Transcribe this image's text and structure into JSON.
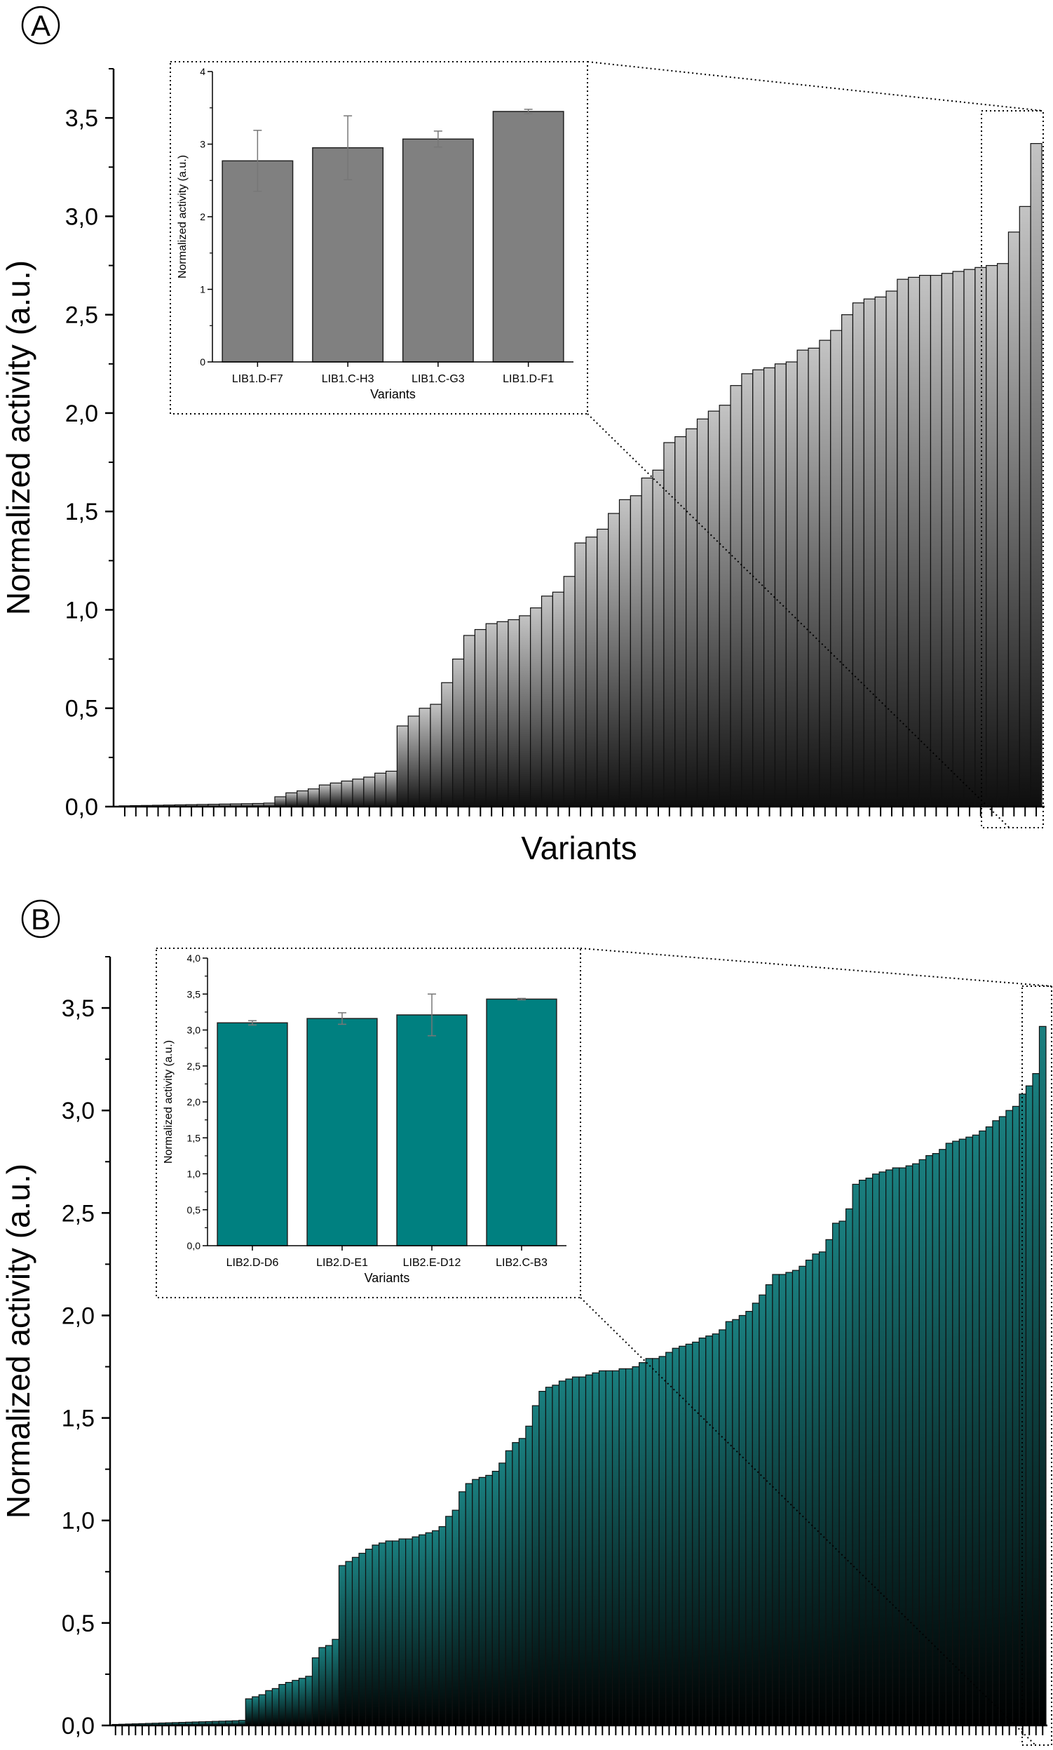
{
  "chart_data": [
    {
      "panel": "A",
      "type": "bar",
      "xlabel": "Variants",
      "ylabel": "Normalized activity (a.u.)",
      "ylim": [
        0,
        3.75
      ],
      "yticks": [
        "0,0",
        "0,5",
        "1,0",
        "1,5",
        "2,0",
        "2,5",
        "3,0",
        "3,5"
      ],
      "colors": {
        "bottom": "#0e0e0e",
        "top": "#c4c4c4"
      },
      "values": [
        0.004,
        0.005,
        0.006,
        0.007,
        0.008,
        0.009,
        0.01,
        0.011,
        0.012,
        0.013,
        0.014,
        0.015,
        0.016,
        0.018,
        0.05,
        0.07,
        0.08,
        0.09,
        0.11,
        0.12,
        0.13,
        0.14,
        0.15,
        0.17,
        0.18,
        0.41,
        0.46,
        0.5,
        0.52,
        0.63,
        0.75,
        0.87,
        0.9,
        0.93,
        0.94,
        0.95,
        0.97,
        1.01,
        1.07,
        1.09,
        1.17,
        1.34,
        1.37,
        1.41,
        1.49,
        1.56,
        1.58,
        1.67,
        1.71,
        1.85,
        1.88,
        1.92,
        1.97,
        2.01,
        2.04,
        2.14,
        2.2,
        2.22,
        2.23,
        2.25,
        2.26,
        2.32,
        2.33,
        2.37,
        2.42,
        2.5,
        2.56,
        2.58,
        2.59,
        2.62,
        2.68,
        2.69,
        2.7,
        2.7,
        2.71,
        2.72,
        2.73,
        2.74,
        2.75,
        2.76,
        2.92,
        3.05,
        3.37
      ],
      "inset": {
        "type": "bar",
        "xlabel": "Variants",
        "ylabel": "Normalized activity (a.u.)",
        "ylim": [
          0,
          4
        ],
        "yticks": [
          "0",
          "1",
          "2",
          "3",
          "4"
        ],
        "color": "#808080",
        "categories": [
          "LIB1.D-F7",
          "LIB1.C-H3",
          "LIB1.C-G3",
          "LIB1.D-F1"
        ],
        "values": [
          2.77,
          2.95,
          3.07,
          3.45
        ],
        "errors": [
          0.42,
          0.44,
          0.11,
          0.03
        ]
      }
    },
    {
      "panel": "B",
      "type": "bar",
      "xlabel": "Variants",
      "ylabel": "Normalized activity (a.u.)",
      "ylim": [
        0,
        3.75
      ],
      "yticks": [
        "0,0",
        "0,5",
        "1,0",
        "1,5",
        "2,0",
        "2,5",
        "3,0",
        "3,5"
      ],
      "colors": {
        "bottom": "#000000",
        "top": "#1a7f7f"
      },
      "values": [
        0.005,
        0.006,
        0.007,
        0.008,
        0.009,
        0.01,
        0.011,
        0.012,
        0.013,
        0.014,
        0.015,
        0.016,
        0.017,
        0.018,
        0.019,
        0.02,
        0.021,
        0.022,
        0.023,
        0.025,
        0.13,
        0.14,
        0.15,
        0.17,
        0.18,
        0.2,
        0.21,
        0.22,
        0.23,
        0.24,
        0.33,
        0.38,
        0.39,
        0.42,
        0.78,
        0.8,
        0.82,
        0.84,
        0.86,
        0.88,
        0.89,
        0.9,
        0.9,
        0.91,
        0.91,
        0.92,
        0.93,
        0.94,
        0.95,
        0.97,
        1.02,
        1.05,
        1.14,
        1.18,
        1.2,
        1.21,
        1.22,
        1.24,
        1.28,
        1.34,
        1.38,
        1.4,
        1.46,
        1.56,
        1.63,
        1.65,
        1.66,
        1.68,
        1.69,
        1.7,
        1.7,
        1.71,
        1.72,
        1.73,
        1.73,
        1.73,
        1.74,
        1.74,
        1.75,
        1.77,
        1.79,
        1.79,
        1.8,
        1.82,
        1.84,
        1.85,
        1.86,
        1.87,
        1.89,
        1.9,
        1.91,
        1.93,
        1.97,
        1.98,
        2.0,
        2.02,
        2.06,
        2.1,
        2.15,
        2.2,
        2.2,
        2.21,
        2.22,
        2.24,
        2.27,
        2.3,
        2.31,
        2.37,
        2.45,
        2.46,
        2.52,
        2.64,
        2.66,
        2.67,
        2.69,
        2.7,
        2.71,
        2.72,
        2.72,
        2.73,
        2.74,
        2.76,
        2.78,
        2.79,
        2.81,
        2.84,
        2.85,
        2.86,
        2.87,
        2.88,
        2.9,
        2.92,
        2.95,
        2.97,
        3.0,
        3.02,
        3.08,
        3.12,
        3.18,
        3.41
      ],
      "inset": {
        "type": "bar",
        "xlabel": "Variants",
        "ylabel": "Normalized activity (a.u.)",
        "ylim": [
          0,
          4.0
        ],
        "yticks": [
          "0,0",
          "0,5",
          "1,0",
          "1,5",
          "2,0",
          "2,5",
          "3,0",
          "3,5",
          "4,0"
        ],
        "color": "#008080",
        "categories": [
          "LIB2.D-D6",
          "LIB2.D-E1",
          "LIB2.E-D12",
          "LIB2.C-B3"
        ],
        "values": [
          3.1,
          3.16,
          3.21,
          3.43
        ],
        "errors": [
          0.03,
          0.08,
          0.29,
          0.01
        ]
      }
    }
  ]
}
